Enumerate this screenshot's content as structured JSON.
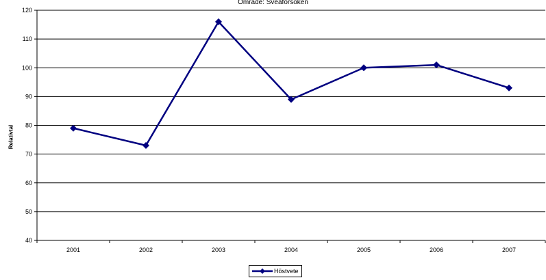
{
  "chart_data": {
    "type": "line",
    "title": "Område: Sveaförsöken",
    "ylabel": "Relativtal",
    "xlabel": "",
    "categories": [
      "2001",
      "2002",
      "2003",
      "2004",
      "2005",
      "2006",
      "2007"
    ],
    "series": [
      {
        "name": "Höstvete",
        "values": [
          79,
          73,
          116,
          89,
          100,
          101,
          93
        ],
        "color": "#000080"
      }
    ],
    "ylim": [
      40,
      120
    ],
    "yticks": [
      40,
      50,
      60,
      70,
      80,
      90,
      100,
      110,
      120
    ],
    "grid": true,
    "legend_position": "bottom"
  }
}
